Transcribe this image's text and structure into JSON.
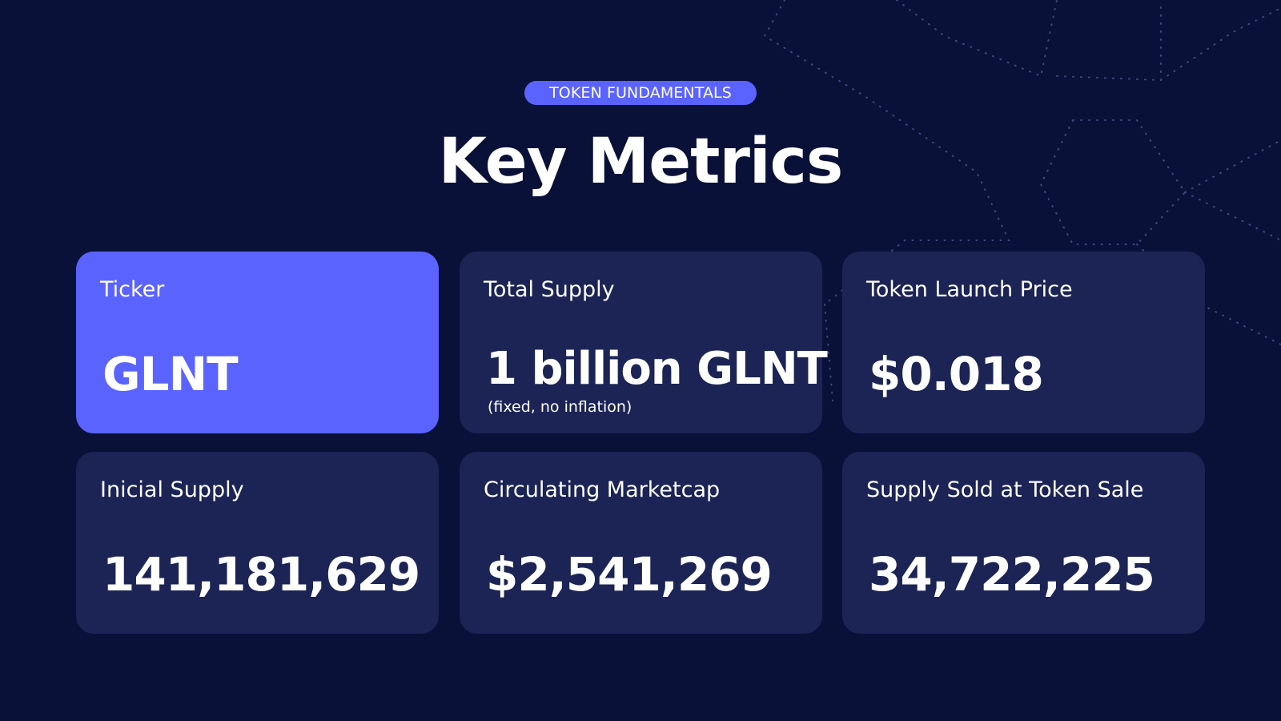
{
  "header": {
    "tag": "TOKEN FUNDAMENTALS",
    "title": "Key Metrics"
  },
  "colors": {
    "background": "#0a1138",
    "card": "#1b2454",
    "accent": "#5b63ff",
    "text": "#ffffff"
  },
  "metrics": [
    {
      "label": "Ticker",
      "value": "GLNT",
      "note": ""
    },
    {
      "label": "Total Supply",
      "value": "1 billion GLNT",
      "note": "(fixed, no inflation)"
    },
    {
      "label": "Token Launch Price",
      "value": "$0.018",
      "note": ""
    },
    {
      "label": "Inicial Supply",
      "value": "141,181,629",
      "note": ""
    },
    {
      "label": "Circulating Marketcap",
      "value": "$2,541,269",
      "note": ""
    },
    {
      "label": "Supply Sold at Token Sale",
      "value": "34,722,225",
      "note": ""
    }
  ]
}
